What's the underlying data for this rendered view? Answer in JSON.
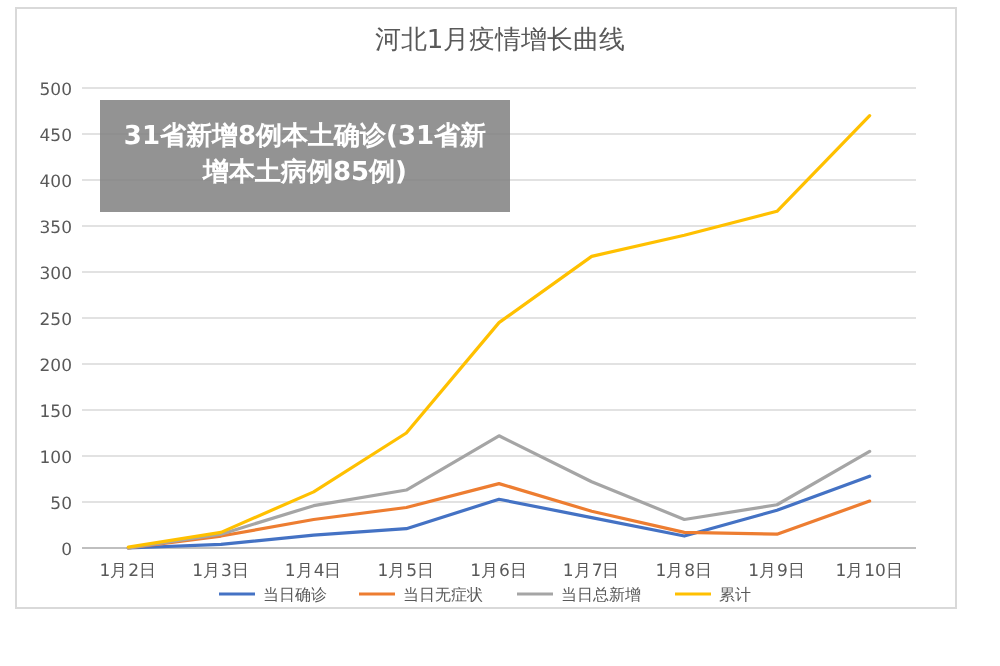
{
  "chart_data": {
    "type": "line",
    "title": "河北1月疫情增长曲线",
    "categories": [
      "1月2日",
      "1月3日",
      "1月4日",
      "1月5日",
      "1月6日",
      "1月7日",
      "1月8日",
      "1月9日",
      "1月10日"
    ],
    "series": [
      {
        "name": "当日确诊",
        "color": "#4472c4",
        "values": [
          0,
          4,
          14,
          21,
          53,
          33,
          13,
          41,
          78
        ]
      },
      {
        "name": "当日无症状",
        "color": "#ed7d31",
        "values": [
          0,
          13,
          31,
          44,
          70,
          40,
          17,
          15,
          51
        ]
      },
      {
        "name": "当日总新增",
        "color": "#a5a5a5",
        "values": [
          0,
          15,
          46,
          63,
          122,
          72,
          31,
          47,
          105
        ]
      },
      {
        "name": "累计",
        "color": "#ffc000",
        "values": [
          1,
          17,
          61,
          125,
          245,
          317,
          340,
          366,
          470
        ]
      }
    ],
    "ylim": [
      0,
      500
    ],
    "yticks": [
      0,
      50,
      100,
      150,
      200,
      250,
      300,
      350,
      400,
      450,
      500
    ],
    "grid": "y",
    "legend": "bottom",
    "marker": "none",
    "line_style": "solid",
    "annotations": [
      "31省新增8例本土确诊(31省新增本土病例85例)"
    ]
  }
}
